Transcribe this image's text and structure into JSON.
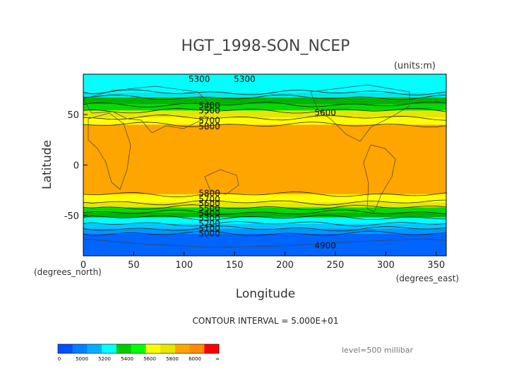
{
  "chart_data": {
    "type": "heatmap",
    "title": "HGT_1998-SON_NCEP",
    "units": "(units:m)",
    "xlabel": "Longitude",
    "ylabel": "Latitude",
    "x_unit_label": "(degrees_east)",
    "y_unit_label": "(degrees_north)",
    "xlim": [
      0,
      360
    ],
    "ylim": [
      -90,
      90
    ],
    "x_ticks": [
      0,
      50,
      100,
      150,
      200,
      250,
      300,
      350
    ],
    "y_ticks": [
      -50,
      0,
      50
    ],
    "contour_interval_text": "CONTOUR INTERVAL = 5.000E+01",
    "level_text": "level=500 millibar",
    "contour_labels": [
      {
        "text": "5300",
        "lon": 115,
        "lat": 85
      },
      {
        "text": "5300",
        "lon": 160,
        "lat": 85
      },
      {
        "text": "5400",
        "lon": 125,
        "lat": 59
      },
      {
        "text": "5500",
        "lon": 125,
        "lat": 54
      },
      {
        "text": "5600",
        "lon": 240,
        "lat": 52
      },
      {
        "text": "5700",
        "lon": 125,
        "lat": 44
      },
      {
        "text": "5800",
        "lon": 125,
        "lat": 38
      },
      {
        "text": "5800",
        "lon": 125,
        "lat": -28
      },
      {
        "text": "5700",
        "lon": 125,
        "lat": -34
      },
      {
        "text": "5600",
        "lon": 125,
        "lat": -38
      },
      {
        "text": "5500",
        "lon": 125,
        "lat": -43
      },
      {
        "text": "5400",
        "lon": 125,
        "lat": -48
      },
      {
        "text": "5300",
        "lon": 125,
        "lat": -53
      },
      {
        "text": "5200",
        "lon": 125,
        "lat": -58
      },
      {
        "text": "5100",
        "lon": 125,
        "lat": -63
      },
      {
        "text": "5000",
        "lon": 125,
        "lat": -68
      },
      {
        "text": "4900",
        "lon": 240,
        "lat": -80
      }
    ],
    "lat_bands": [
      {
        "lat_top": 90,
        "lat_bottom": 72,
        "color": "#00ffff"
      },
      {
        "lat_top": 72,
        "lat_bottom": 67,
        "color": "#00e8e8"
      },
      {
        "lat_top": 67,
        "lat_bottom": 60,
        "color": "#00b400"
      },
      {
        "lat_top": 60,
        "lat_bottom": 54,
        "color": "#00dc00"
      },
      {
        "lat_top": 54,
        "lat_bottom": 47,
        "color": "#e6e600"
      },
      {
        "lat_top": 47,
        "lat_bottom": 40,
        "color": "#ffff00"
      },
      {
        "lat_top": 40,
        "lat_bottom": -29,
        "color": "#ffa500"
      },
      {
        "lat_top": -29,
        "lat_bottom": -37,
        "color": "#ffff00"
      },
      {
        "lat_top": -37,
        "lat_bottom": -42,
        "color": "#e6e600"
      },
      {
        "lat_top": -42,
        "lat_bottom": -47,
        "color": "#00dc00"
      },
      {
        "lat_top": -47,
        "lat_bottom": -52,
        "color": "#00b400"
      },
      {
        "lat_top": -52,
        "lat_bottom": -58,
        "color": "#00ffff"
      },
      {
        "lat_top": -58,
        "lat_bottom": -63,
        "color": "#00c8ff"
      },
      {
        "lat_top": -63,
        "lat_bottom": -68,
        "color": "#0096ff"
      },
      {
        "lat_top": -68,
        "lat_bottom": -90,
        "color": "#0064ff"
      }
    ],
    "colorbar": {
      "colors": [
        "#0050ff",
        "#0080ff",
        "#00b0ff",
        "#00ffff",
        "#00cc00",
        "#00ff00",
        "#ffff00",
        "#e6e600",
        "#ffa500",
        "#ff8c00",
        "#ff0000"
      ],
      "labels": [
        "0",
        "5000",
        "5200",
        "5400",
        "5600",
        "5800",
        "6000",
        "∞"
      ]
    }
  }
}
